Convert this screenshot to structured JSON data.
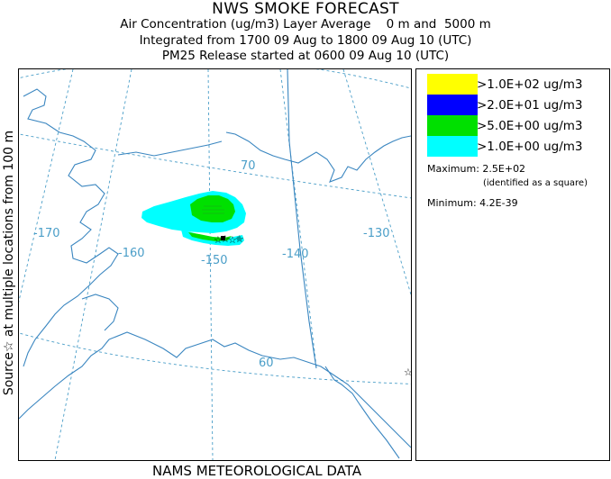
{
  "header": {
    "title": "NWS SMOKE FORECAST",
    "line2": "Air Concentration (ug/m3) Layer Average    0 m and  5000 m",
    "line3": "Integrated from 1700 09 Aug to 1800 09 Aug 10 (UTC)",
    "line4": "PM25 Release started at 0600 09 Aug 10 (UTC)"
  },
  "side_label": "Source☆  at multiple locations  from  100 m",
  "bottom_label": "NAMS METEOROLOGICAL DATA",
  "map": {
    "latitude_labels": [
      "70",
      "60"
    ],
    "longitude_labels": [
      "-170",
      "-160",
      "-150",
      "-140",
      "-130"
    ],
    "plume_colors": {
      "gt_1e0": "#00ffff",
      "gt_5e0": "#00e000"
    },
    "graticule_color": "#4a9ec8",
    "coast_color": "#3a86c0"
  },
  "legend": {
    "items": [
      {
        "label": ">1.0E+02 ug/m3",
        "color": "#ffff00"
      },
      {
        "label": ">2.0E+01 ug/m3",
        "color": "#0000ff"
      },
      {
        "label": ">5.0E+00 ug/m3",
        "color": "#00e000"
      },
      {
        "label": ">1.0E+00 ug/m3",
        "color": "#00ffff"
      }
    ],
    "maximum_label": "Maximum: 2.5E+02",
    "maximum_note": "(identified as a square)",
    "minimum_label": "Minimum: 4.2E-39"
  }
}
